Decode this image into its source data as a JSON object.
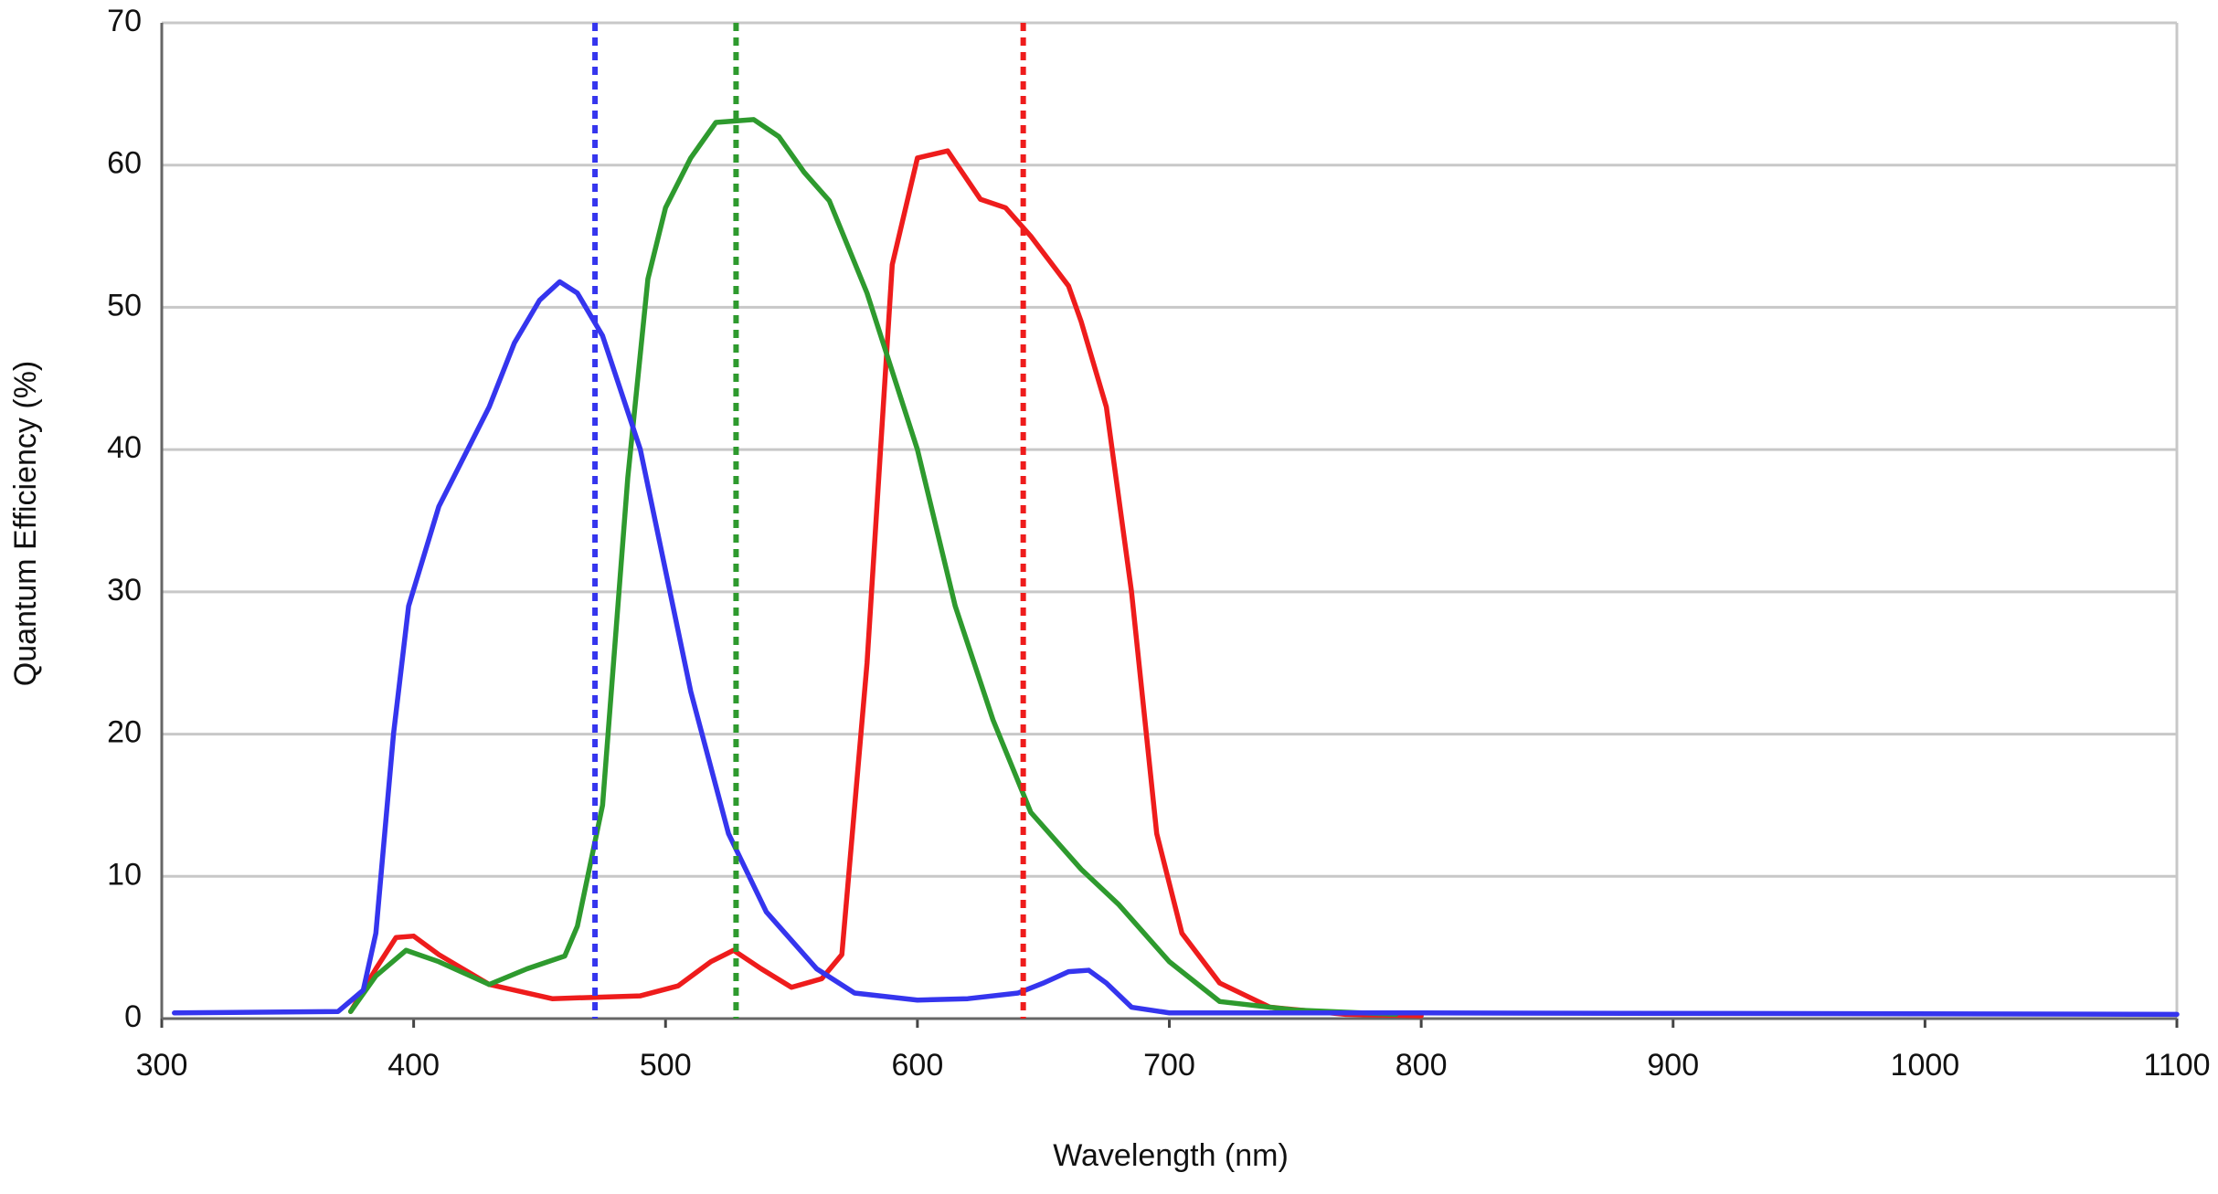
{
  "chart_data": {
    "type": "line",
    "xlabel": "Wavelength (nm)",
    "ylabel": "Quantum Efficiency (%)",
    "xlim": [
      300,
      1100
    ],
    "xticks": [
      300,
      400,
      500,
      600,
      700,
      800,
      900,
      1000,
      1100
    ],
    "ylim": [
      0,
      70
    ],
    "yticks": [
      0,
      10,
      20,
      30,
      40,
      50,
      60,
      70
    ],
    "grid": true,
    "series": [
      {
        "color": "#ee1c1c",
        "x": [
          375,
          385,
          393,
          400,
          410,
          430,
          455,
          490,
          505,
          518,
          527,
          538,
          550,
          562,
          570,
          580,
          590,
          600,
          612,
          625,
          635,
          645,
          660,
          665,
          675,
          685,
          695,
          705,
          720,
          740,
          770,
          800
        ],
        "values": [
          0.5,
          3.5,
          5.7,
          5.8,
          4.5,
          2.4,
          1.4,
          1.6,
          2.3,
          4,
          4.8,
          3.5,
          2.2,
          2.8,
          4.5,
          25,
          53,
          60.5,
          61,
          57.6,
          57,
          55,
          51.5,
          49,
          43,
          30,
          13,
          6,
          2.5,
          0.8,
          0.3,
          0.2
        ]
      },
      {
        "color": "#2e9a2e",
        "x": [
          375,
          385,
          397,
          410,
          430,
          445,
          460,
          465,
          475,
          485,
          493,
          500,
          510,
          520,
          535,
          545,
          555,
          565,
          580,
          600,
          615,
          630,
          645,
          665,
          680,
          700,
          720,
          750,
          790
        ],
        "values": [
          0.5,
          3,
          4.8,
          4,
          2.4,
          3.5,
          4.4,
          6.5,
          15,
          38,
          52,
          57,
          60.5,
          63,
          63.2,
          62,
          59.5,
          57.5,
          51,
          40,
          29,
          21,
          14.5,
          10.5,
          8,
          4,
          1.2,
          0.6,
          0.3
        ]
      },
      {
        "color": "#3535ee",
        "x": [
          305,
          370,
          380,
          385,
          392,
          398,
          410,
          430,
          440,
          450,
          458,
          465,
          475,
          490,
          510,
          525,
          540,
          560,
          575,
          600,
          620,
          640,
          650,
          660,
          668,
          675,
          685,
          700,
          800,
          1100
        ],
        "values": [
          0.4,
          0.5,
          2,
          6,
          20,
          29,
          36,
          43,
          47.5,
          50.5,
          51.8,
          51,
          48,
          40,
          23,
          13,
          7.5,
          3.5,
          1.8,
          1.3,
          1.4,
          1.8,
          2.5,
          3.3,
          3.4,
          2.5,
          0.8,
          0.4,
          0.4,
          0.3
        ]
      }
    ],
    "vlines": [
      {
        "x": 472,
        "color": "#3535ee"
      },
      {
        "x": 528,
        "color": "#2e9a2e"
      },
      {
        "x": 642,
        "color": "#ee1c1c"
      }
    ]
  }
}
